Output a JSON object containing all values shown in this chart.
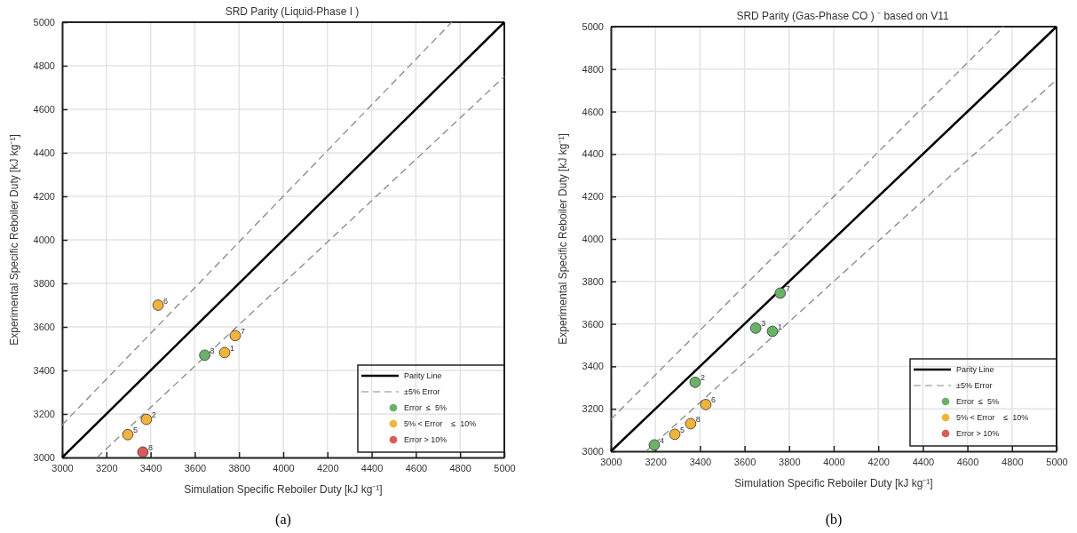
{
  "chart_data": [
    {
      "type": "scatter",
      "title": "SRD Parity (Liquid-Phase I )",
      "xlabel": "Simulation Specific Reboiler Duty [kJ kg⁻¹]",
      "ylabel": "Experimental Specific Reboiler Duty [kJ kg⁻¹]",
      "xlim": [
        3000,
        5000
      ],
      "ylim": [
        3000,
        5000
      ],
      "xticks": [
        3000,
        3200,
        3400,
        3600,
        3800,
        4000,
        4200,
        4400,
        4600,
        4800,
        5000
      ],
      "yticks": [
        3000,
        3200,
        3400,
        3600,
        3800,
        4000,
        4200,
        4400,
        4600,
        4800,
        5000
      ],
      "grid": true,
      "legend": "bottom right",
      "series": [
        {
          "name": "Parity Line",
          "type": "line",
          "color": "#000000",
          "line_style": "solid",
          "x": [
            3000,
            5000
          ],
          "values": [
            3000,
            5000
          ]
        },
        {
          "name": "±5% Error",
          "type": "line",
          "color": "#888888",
          "line_style": "dashed",
          "x": [
            3000,
            4762
          ],
          "values": [
            3150,
            5000
          ]
        },
        {
          "type": "line",
          "color": "#888888",
          "line_style": "dashed",
          "x": [
            3158,
            5000
          ],
          "values": [
            3000,
            4750
          ]
        },
        {
          "name": "Error  ≤  5%",
          "marker": "circle",
          "color": "#6ab26a",
          "x": [
            3645
          ],
          "values": [
            3470
          ]
        },
        {
          "name": "5% < Error    ≤  10%",
          "marker": "circle",
          "color": "#f0b33c",
          "x": [
            3735,
            3381,
            3297,
            3434,
            3783
          ],
          "values": [
            3482,
            3175,
            3105,
            3700,
            3560
          ]
        },
        {
          "name": "Error > 10%",
          "marker": "circle",
          "color": "#d95a5a",
          "x": [
            3365
          ],
          "values": [
            3025
          ]
        }
      ],
      "annotations": [
        {
          "text": "1",
          "x": 3735,
          "y": 3482
        },
        {
          "text": "2",
          "x": 3381,
          "y": 3175
        },
        {
          "text": "3",
          "x": 3645,
          "y": 3470
        },
        {
          "text": "5",
          "x": 3297,
          "y": 3105
        },
        {
          "text": "6",
          "x": 3434,
          "y": 3700
        },
        {
          "text": "7",
          "x": 3783,
          "y": 3560
        },
        {
          "text": "8",
          "x": 3365,
          "y": 3025
        },
        "(a)"
      ]
    },
    {
      "type": "scatter",
      "title": "SRD Parity (Gas-Phase CO ) ⁻ based on V11",
      "xlabel": "Simulation Specific Reboiler Duty [kJ kg⁻¹]",
      "ylabel": "Experimental Specific Reboiler Duty [kJ kg⁻¹]",
      "xlim": [
        3000,
        5000
      ],
      "ylim": [
        3000,
        5000
      ],
      "xticks": [
        3000,
        3200,
        3400,
        3600,
        3800,
        4000,
        4200,
        4400,
        4600,
        4800,
        5000
      ],
      "yticks": [
        3000,
        3200,
        3400,
        3600,
        3800,
        4000,
        4200,
        4400,
        4600,
        4800,
        5000
      ],
      "grid": true,
      "legend": "bottom right",
      "series": [
        {
          "name": "Parity Line",
          "type": "line",
          "color": "#000000",
          "line_style": "solid",
          "x": [
            3000,
            5000
          ],
          "values": [
            3000,
            5000
          ]
        },
        {
          "name": "±5% Error",
          "type": "line",
          "color": "#888888",
          "line_style": "dashed",
          "x": [
            3000,
            4762
          ],
          "values": [
            3150,
            5000
          ]
        },
        {
          "type": "line",
          "color": "#888888",
          "line_style": "dashed",
          "x": [
            3158,
            5000
          ],
          "values": [
            3000,
            4750
          ]
        },
        {
          "name": "Error  ≤  5%",
          "marker": "circle",
          "color": "#6ab26a",
          "x": [
            3725,
            3378,
            3650,
            3195,
            3760
          ],
          "values": [
            3565,
            3325,
            3580,
            3030,
            3745
          ]
        },
        {
          "name": "5% < Error    ≤  10%",
          "marker": "circle",
          "color": "#f0b33c",
          "x": [
            3287,
            3426,
            3358
          ],
          "values": [
            3080,
            3220,
            3130
          ]
        },
        {
          "name": "Error > 10%",
          "marker": "circle",
          "color": "#d95a5a"
        }
      ],
      "annotations": [
        {
          "text": "1",
          "x": 3725,
          "y": 3565
        },
        {
          "text": "2",
          "x": 3378,
          "y": 3325
        },
        {
          "text": "3",
          "x": 3650,
          "y": 3580
        },
        {
          "text": "4",
          "x": 3195,
          "y": 3030
        },
        {
          "text": "5",
          "x": 3287,
          "y": 3080
        },
        {
          "text": "6",
          "x": 3426,
          "y": 3220
        },
        {
          "text": "7",
          "x": 3760,
          "y": 3745
        },
        {
          "text": "8",
          "x": 3358,
          "y": 3130
        },
        "(b)"
      ]
    }
  ]
}
